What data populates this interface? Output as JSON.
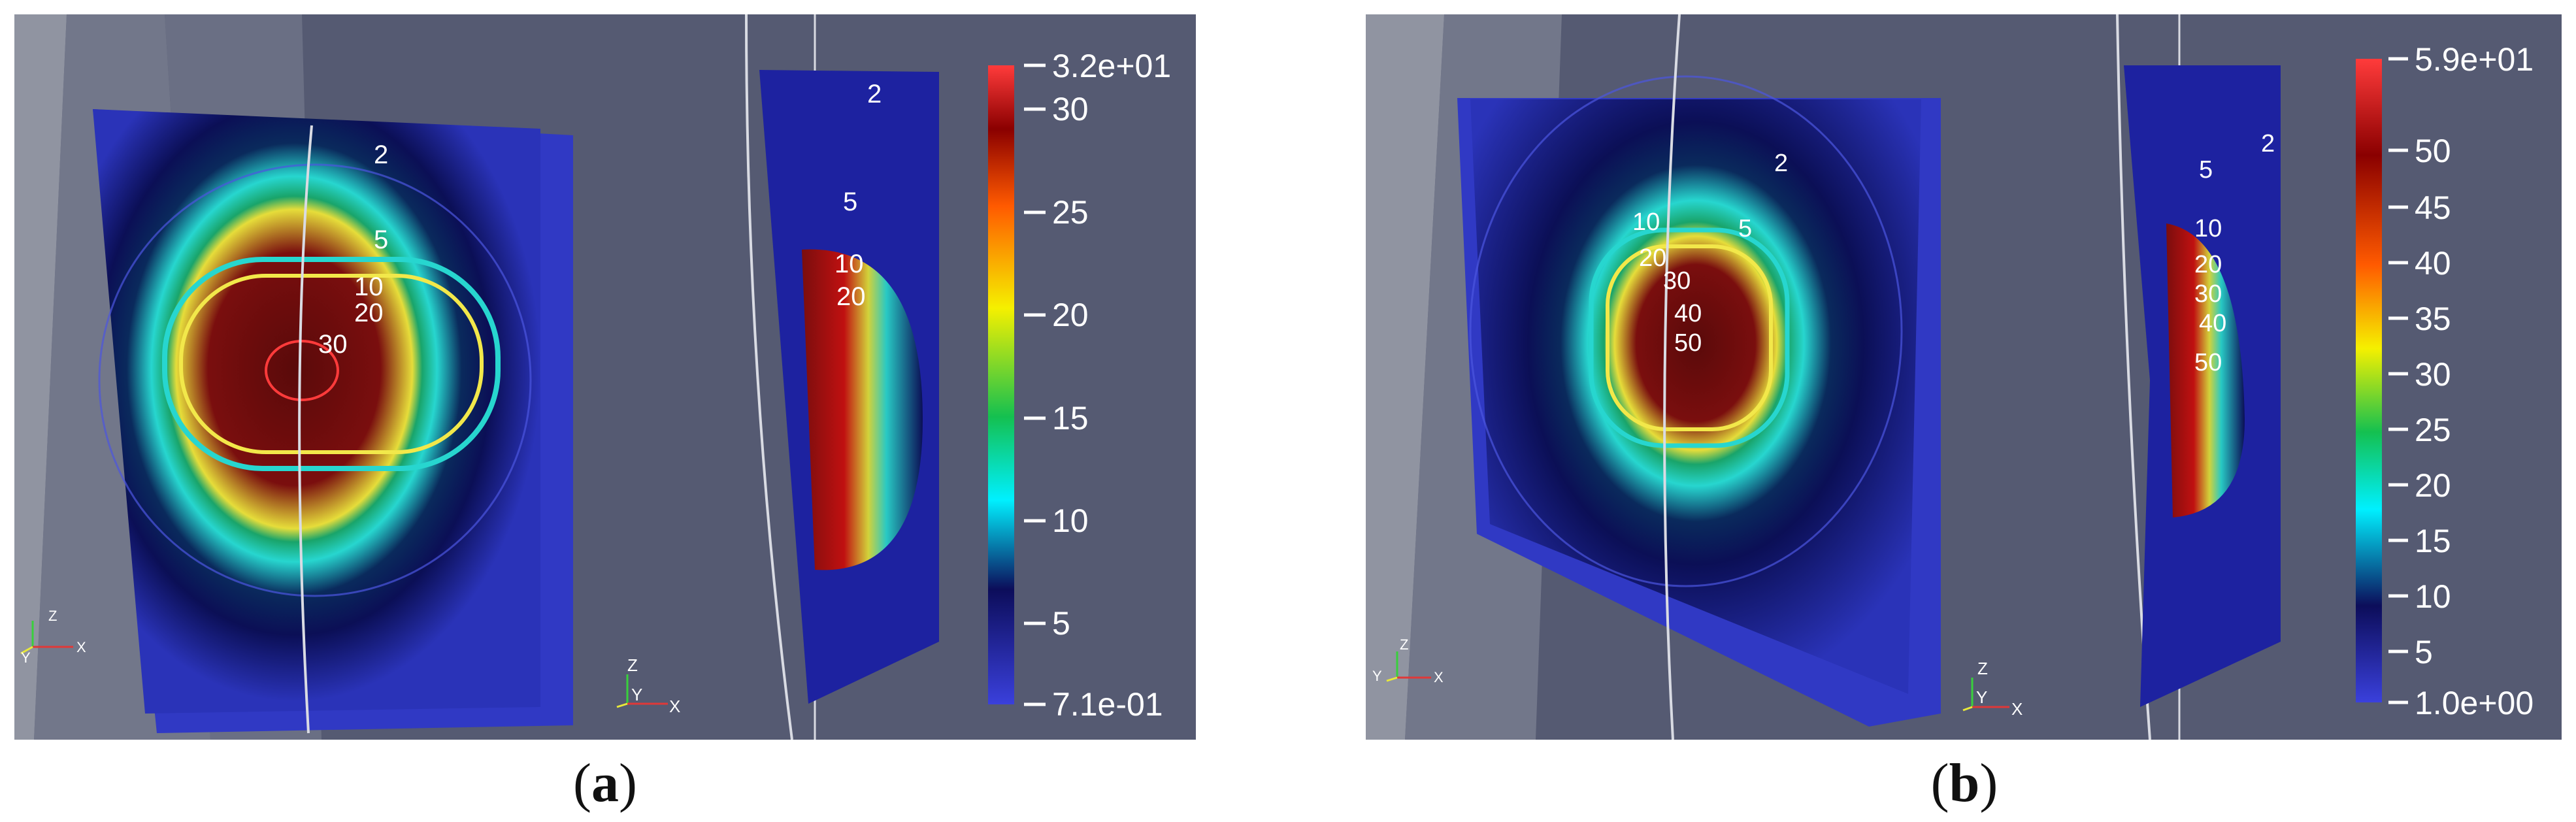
{
  "figure": {
    "panels": [
      {
        "caption_label": "a",
        "contour_labels": [
          "2",
          "5",
          "10",
          "20",
          "30"
        ],
        "side_labels": [
          "2",
          "5",
          "10",
          "20"
        ],
        "colorbar": {
          "max_label": "3.2e+01",
          "min_label": "7.1e-01",
          "ticks": [
            "30",
            "25",
            "20",
            "15",
            "10",
            "5"
          ]
        },
        "axes_letters": {
          "z": "Z",
          "y": "Y",
          "x": "X"
        }
      },
      {
        "caption_label": "b",
        "contour_labels": [
          "2",
          "5",
          "10",
          "20",
          "30",
          "40",
          "50"
        ],
        "side_labels": [
          "2",
          "5",
          "10",
          "20",
          "30",
          "40",
          "50"
        ],
        "colorbar": {
          "max_label": "5.9e+01",
          "min_label": "1.0e+00",
          "ticks": [
            "50",
            "45",
            "40",
            "35",
            "30",
            "25",
            "20",
            "15",
            "10",
            "5"
          ]
        },
        "axes_letters": {
          "z": "Z",
          "y": "Y",
          "x": "X"
        }
      }
    ],
    "colors": {
      "background": "#555a72",
      "low": "#3a40c8",
      "mid_cyan": "#27d6cf",
      "high": "#7a0e0e",
      "contour": "#f2e84a"
    }
  }
}
